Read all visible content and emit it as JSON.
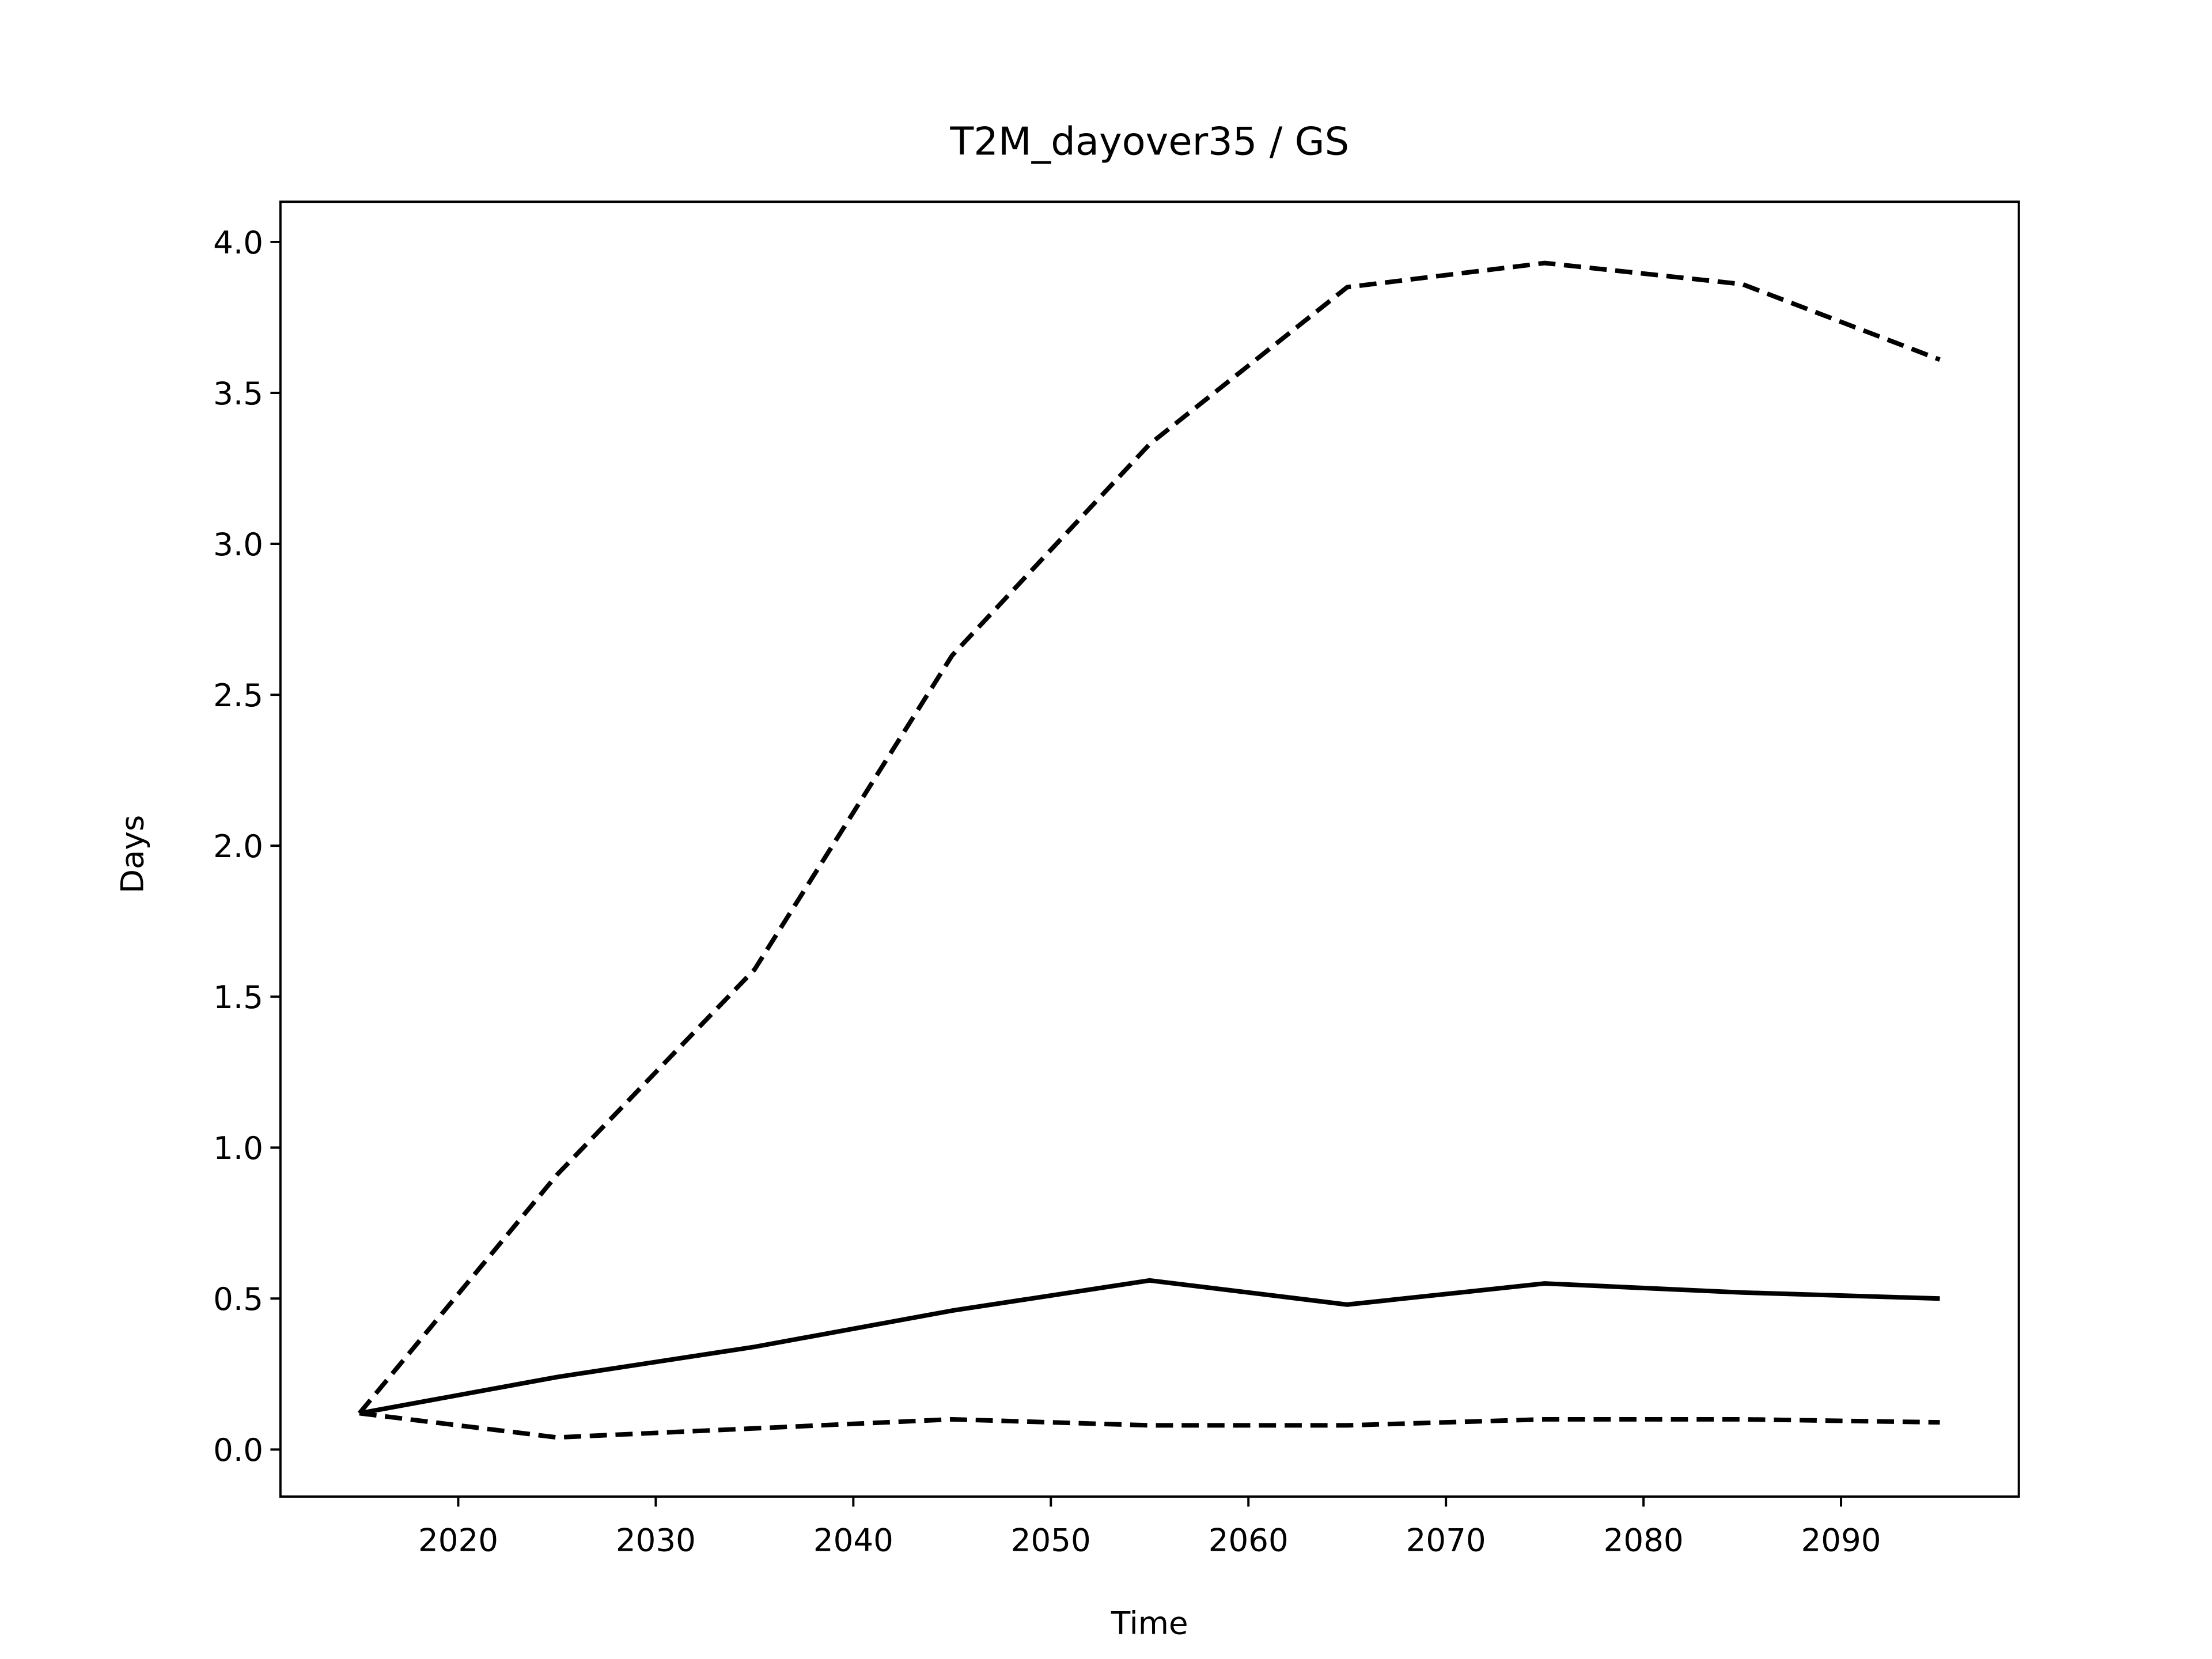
{
  "chart_data": {
    "type": "line",
    "title": "T2M_dayover35 / GS",
    "xlabel": "Time",
    "ylabel": "Days",
    "x": [
      2015,
      2025,
      2035,
      2045,
      2055,
      2065,
      2075,
      2085,
      2095
    ],
    "series": [
      {
        "color": "#000000",
        "linestyle": "dashed",
        "values": [
          0.12,
          0.91,
          1.59,
          2.63,
          3.33,
          3.85,
          3.93,
          3.86,
          3.61
        ]
      },
      {
        "color": "#000000",
        "linestyle": "solid",
        "values": [
          0.12,
          0.24,
          0.34,
          0.46,
          0.56,
          0.48,
          0.55,
          0.52,
          0.5
        ]
      },
      {
        "color": "#000000",
        "linestyle": "dashed",
        "values": [
          0.12,
          0.04,
          0.07,
          0.1,
          0.08,
          0.08,
          0.1,
          0.1,
          0.09
        ]
      }
    ],
    "xlim": [
      2011,
      2099
    ],
    "xticks": [
      2020,
      2030,
      2040,
      2050,
      2060,
      2070,
      2080,
      2090
    ],
    "ylim": [
      -0.156,
      4.133
    ],
    "yticks": [
      {
        "value": 0,
        "label": "0.0"
      },
      0.5,
      {
        "value": 1,
        "label": "1.0"
      },
      1.5,
      {
        "value": 2,
        "label": "2.0"
      },
      2.5,
      {
        "value": 3,
        "label": "3.0"
      },
      3.5,
      {
        "value": 4,
        "label": "4.0"
      }
    ],
    "grid": false
  }
}
